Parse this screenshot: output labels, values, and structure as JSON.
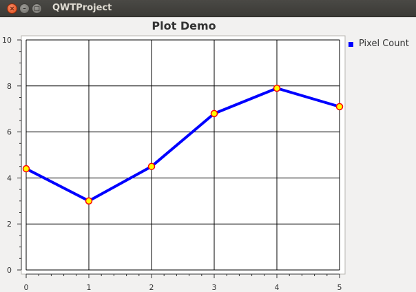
{
  "window": {
    "title": "QWTProject",
    "buttons": {
      "close": "×",
      "minimize": "–",
      "maximize": "□"
    }
  },
  "chart_data": {
    "type": "line",
    "title": "Plot Demo",
    "xlabel": "",
    "ylabel": "",
    "x": [
      0,
      1,
      2,
      3,
      4,
      5
    ],
    "series": [
      {
        "name": "Pixel Count",
        "values": [
          4.4,
          3.0,
          4.5,
          6.8,
          7.9,
          7.1
        ],
        "color": "#0000ff",
        "marker_fill": "#ffff00",
        "marker_edge": "#ff0000"
      }
    ],
    "xlim": [
      0,
      5
    ],
    "ylim": [
      0,
      10
    ],
    "x_ticks": [
      "0",
      "1",
      "2",
      "3",
      "4",
      "5"
    ],
    "y_ticks": [
      "0",
      "2",
      "4",
      "6",
      "8",
      "10"
    ],
    "grid": true,
    "legend": "right"
  }
}
